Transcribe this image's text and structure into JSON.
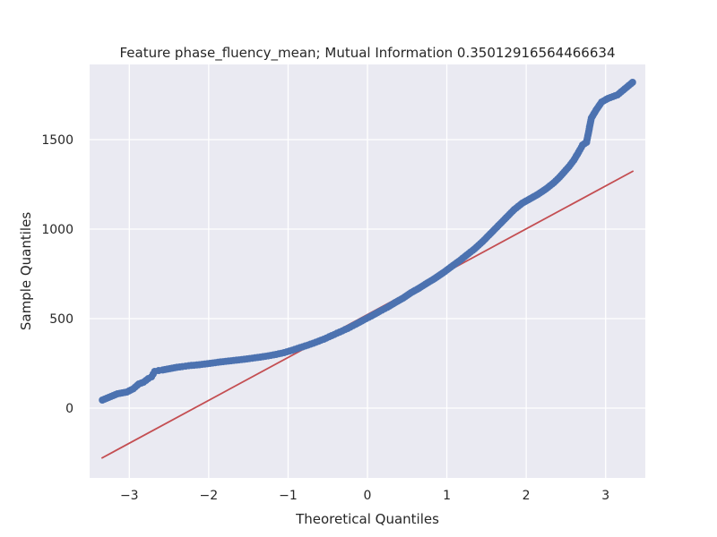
{
  "chart_data": {
    "type": "scatter",
    "title": "Feature phase_fluency_mean; Mutual Information 0.35012916564466634",
    "xlabel": "Theoretical Quantiles",
    "ylabel": "Sample Quantiles",
    "xlim": [
      -3.5,
      3.5
    ],
    "ylim": [
      -390,
      1920
    ],
    "x_ticks": [
      -3,
      -2,
      -1,
      0,
      1,
      2,
      3
    ],
    "x_tick_labels": [
      "−3",
      "−2",
      "−1",
      "0",
      "1",
      "2",
      "3"
    ],
    "y_ticks": [
      0,
      500,
      1000,
      1500
    ],
    "y_tick_labels": [
      "0",
      "500",
      "1000",
      "1500"
    ],
    "grid": true,
    "background": "#eaeaf2",
    "point_color": "#4c72b0",
    "line_color": "#c44e52",
    "reference_line": {
      "x": [
        -3.35,
        3.35
      ],
      "y": [
        -280,
        1325
      ]
    },
    "series": [
      {
        "x": [
          -3.34,
          -3.15,
          -3.03,
          -2.95,
          -2.88,
          -2.82,
          -2.76,
          -2.72,
          -2.68,
          -2.63,
          -2.58,
          -2.52,
          -2.46,
          -2.4,
          -2.33,
          -2.25,
          -2.15,
          -2.05,
          -1.95,
          -1.85,
          -1.75,
          -1.65,
          -1.55,
          -1.45,
          -1.35,
          -1.25,
          -1.15,
          -1.05,
          -0.95,
          -0.85,
          -0.75,
          -0.65,
          -0.55,
          -0.45,
          -0.35,
          -0.25,
          -0.15,
          -0.05,
          0.05,
          0.15,
          0.25,
          0.35,
          0.45,
          0.55,
          0.65,
          0.75,
          0.85,
          0.95,
          1.05,
          1.15,
          1.25,
          1.35,
          1.45,
          1.55,
          1.65,
          1.75,
          1.85,
          1.95,
          2.05,
          2.15,
          2.25,
          2.35,
          2.42,
          2.48,
          2.54,
          2.6,
          2.66,
          2.71,
          2.76,
          2.82,
          2.88,
          2.95,
          3.03,
          3.15,
          3.34
        ],
        "y": [
          45,
          80,
          90,
          108,
          135,
          145,
          165,
          175,
          205,
          210,
          213,
          218,
          223,
          228,
          232,
          237,
          241,
          246,
          252,
          258,
          263,
          268,
          273,
          279,
          285,
          292,
          300,
          310,
          323,
          338,
          352,
          368,
          385,
          405,
          425,
          445,
          468,
          492,
          515,
          540,
          563,
          590,
          615,
          645,
          670,
          698,
          725,
          755,
          788,
          820,
          855,
          890,
          930,
          975,
          1020,
          1065,
          1110,
          1145,
          1170,
          1195,
          1225,
          1260,
          1290,
          1320,
          1350,
          1385,
          1430,
          1470,
          1485,
          1620,
          1665,
          1710,
          1730,
          1750,
          1820
        ]
      }
    ]
  }
}
